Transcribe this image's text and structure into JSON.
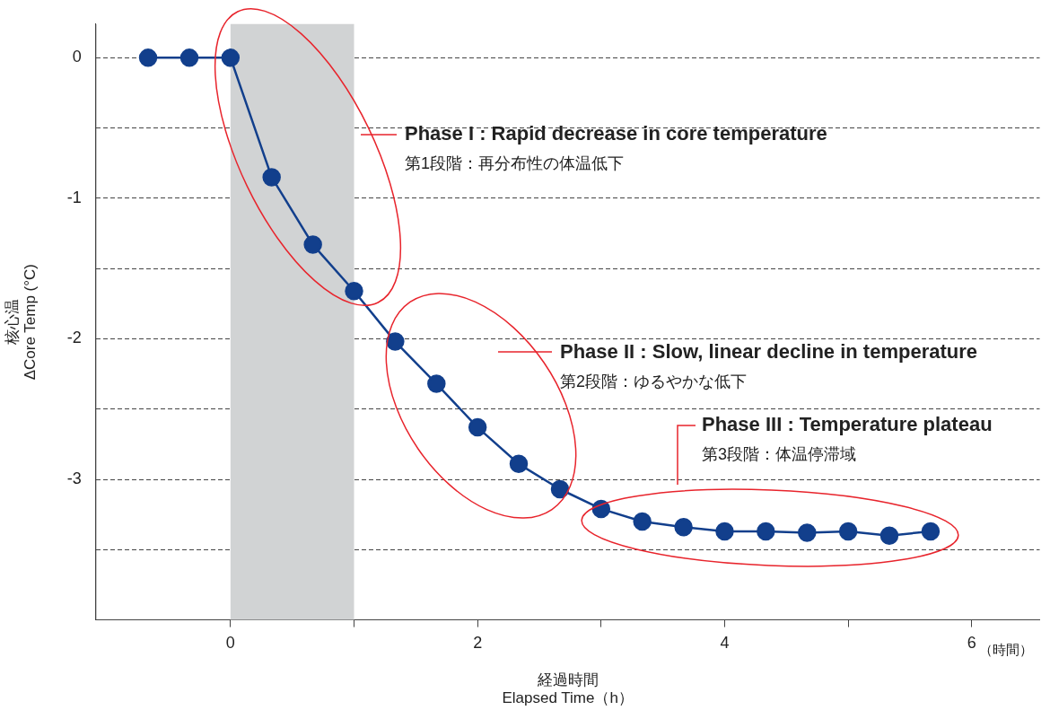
{
  "chart_data": {
    "type": "line",
    "xlabel": "経過時間\nElapsed Time（h）",
    "ylabel": "核心温\nΔCore Temp (°C)",
    "x": [
      -0.667,
      -0.333,
      0,
      0.333,
      0.667,
      1,
      1.333,
      1.667,
      2,
      2.333,
      2.667,
      3,
      3.333,
      3.667,
      4,
      4.333,
      4.667,
      5,
      5.333,
      5.667
    ],
    "series": [
      {
        "color": "#123f8c",
        "values": [
          0,
          0,
          0,
          -0.85,
          -1.33,
          -1.66,
          -2.02,
          -2.32,
          -2.63,
          -2.89,
          -3.07,
          -3.21,
          -3.3,
          -3.34,
          -3.37,
          -3.37,
          -3.38,
          -3.37,
          -3.4,
          -3.37
        ]
      }
    ],
    "xlim": [
      -1.09,
      6.55
    ],
    "xticks": [
      0,
      {
        "value": 1,
        "label": null
      },
      2,
      {
        "value": 3,
        "label": null
      },
      4,
      {
        "value": 5,
        "label": null
      },
      6
    ],
    "ylim": [
      -4,
      0.24
    ],
    "yticks": [
      0,
      {
        "value": -0.5,
        "label": null
      },
      -1,
      {
        "value": -1.5,
        "label": null
      },
      -2,
      {
        "value": -2.5,
        "label": null
      },
      -3,
      {
        "value": -3.5,
        "label": null
      }
    ],
    "bands": [
      {
        "axis": "x",
        "from": 0,
        "to": 1,
        "color": "#d1d3d4"
      }
    ],
    "annotations": [
      "（時間）",
      "Phase I : Rapid decrease in core temperature\n第1段階：再分布性の体温低下",
      "Phase II : Slow, linear decline in temperature\n第2段階：ゆるやかな低下",
      "Phase III : Temperature plateau\n第3段階：体温停滞域"
    ],
    "grid": "y",
    "legend": false,
    "marker": "circle",
    "line_style": "solid"
  }
}
